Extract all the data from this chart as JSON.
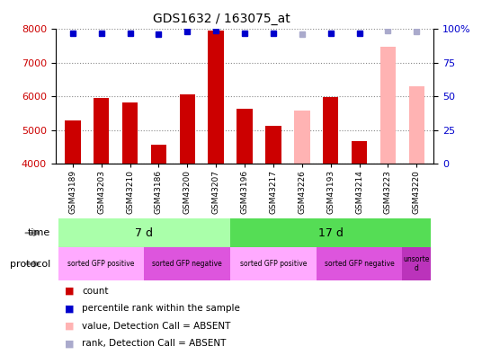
{
  "title": "GDS1632 / 163075_at",
  "samples": [
    "GSM43189",
    "GSM43203",
    "GSM43210",
    "GSM43186",
    "GSM43200",
    "GSM43207",
    "GSM43196",
    "GSM43217",
    "GSM43226",
    "GSM43193",
    "GSM43214",
    "GSM43223",
    "GSM43220"
  ],
  "count_values": [
    5300,
    5950,
    5820,
    4570,
    6070,
    7970,
    5630,
    5140,
    null,
    5980,
    4680,
    null,
    null
  ],
  "count_absent_values": [
    null,
    null,
    null,
    null,
    null,
    null,
    null,
    null,
    5570,
    null,
    null,
    7490,
    6290
  ],
  "rank_values": [
    97,
    97,
    97,
    96,
    98,
    99,
    97,
    97,
    null,
    97,
    97,
    null,
    null
  ],
  "rank_absent_values": [
    null,
    null,
    null,
    null,
    null,
    null,
    null,
    null,
    96,
    null,
    null,
    99,
    98
  ],
  "ylim_left": [
    4000,
    8000
  ],
  "ylim_right": [
    0,
    100
  ],
  "bar_color": "#cc0000",
  "bar_absent_color": "#ffb3b3",
  "rank_color": "#0000cc",
  "rank_absent_color": "#aaaacc",
  "time_7d_color": "#aaffaa",
  "time_17d_color": "#55dd55",
  "prot_pos_color": "#ffaaff",
  "prot_neg_color": "#dd55dd",
  "prot_unsorted_color": "#bb33bb",
  "bg_color": "#ffffff",
  "grid_color": "#888888",
  "ylabel_left_color": "#cc0000",
  "ylabel_right_color": "#0000cc",
  "legend_items": [
    {
      "color": "#cc0000",
      "label": "count"
    },
    {
      "color": "#0000cc",
      "label": "percentile rank within the sample"
    },
    {
      "color": "#ffb3b3",
      "label": "value, Detection Call = ABSENT"
    },
    {
      "color": "#aaaacc",
      "label": "rank, Detection Call = ABSENT"
    }
  ]
}
